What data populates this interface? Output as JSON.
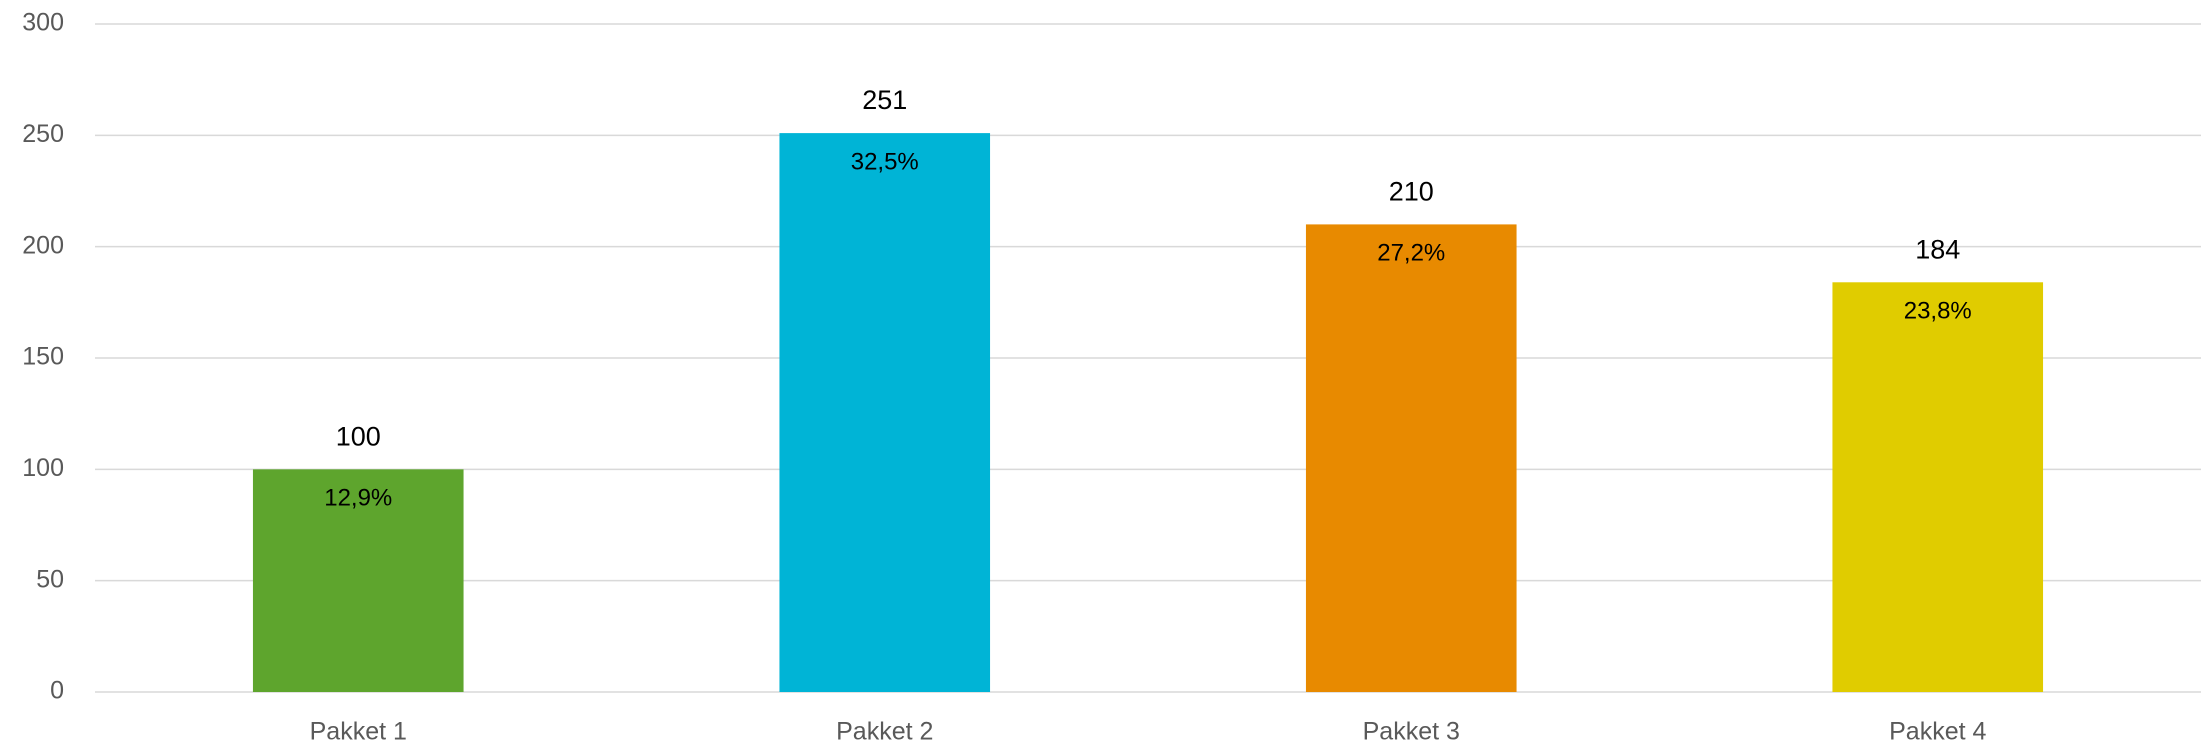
{
  "chart_data": {
    "type": "bar",
    "categories": [
      "Pakket 1",
      "Pakket 2",
      "Pakket 3",
      "Pakket 4"
    ],
    "values": [
      100,
      251,
      210,
      184
    ],
    "percent_labels": [
      "12,9%",
      "32,5%",
      "27,2%",
      "23,8%"
    ],
    "colors": [
      "#5ea52d",
      "#00b4d6",
      "#e88a00",
      "#e0cc00"
    ],
    "ylim": [
      0,
      300
    ],
    "yticks": [
      0,
      50,
      100,
      150,
      200,
      250,
      300
    ],
    "grid": true
  }
}
